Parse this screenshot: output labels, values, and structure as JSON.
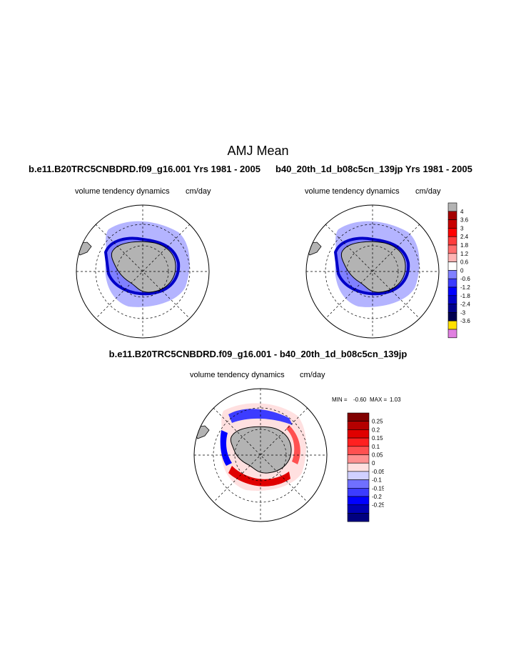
{
  "figure": {
    "main_title": "AMJ Mean",
    "panel_left": {
      "title": "b.e11.B20TRC5CNBDRD.f09_g16.001  Yrs 1981 - 2005",
      "variable": "volume tendency dynamics",
      "units": "cm/day"
    },
    "panel_right": {
      "title": "b40_20th_1d_b08c5cn_139jp  Yrs 1981 - 2005",
      "variable": "volume tendency dynamics",
      "units": "cm/day"
    },
    "panel_diff": {
      "title": "b.e11.B20TRC5CNBDRD.f09_g16.001 - b40_20th_1d_b08c5cn_139jp",
      "variable": "volume tendency dynamics",
      "units": "cm/day",
      "min_label": "MIN =",
      "min_value": "-0.60",
      "max_label": "MAX =",
      "max_value": "1.03"
    }
  },
  "colorbar_main": {
    "labels": [
      "4",
      "3.6",
      "3",
      "2.4",
      "1.8",
      "1.2",
      "0.6",
      "0",
      "-0.6",
      "-1.2",
      "-1.8",
      "-2.4",
      "-3",
      "-3.6"
    ],
    "colors": [
      "#b3b3b3",
      "#a50000",
      "#c80000",
      "#ff0000",
      "#ff3c3c",
      "#ff6e6e",
      "#ffb4b4",
      "#ffffff",
      "#8080ff",
      "#3c3cff",
      "#0000ff",
      "#0000c8",
      "#00008c",
      "#000050",
      "#ffe000",
      "#e080e0"
    ]
  },
  "colorbar_diff": {
    "labels": [
      "0.25",
      "0.2",
      "0.15",
      "0.1",
      "0.05",
      "0",
      "-0.05",
      "-0.1",
      "-0.15",
      "-0.2",
      "-0.25"
    ],
    "colors": [
      "#800000",
      "#b40000",
      "#e00000",
      "#ff2020",
      "#ff5050",
      "#ff9090",
      "#ffe0e0",
      "#d0d0ff",
      "#7070ff",
      "#3c3cff",
      "#0000ff",
      "#0000b4",
      "#000080"
    ]
  }
}
